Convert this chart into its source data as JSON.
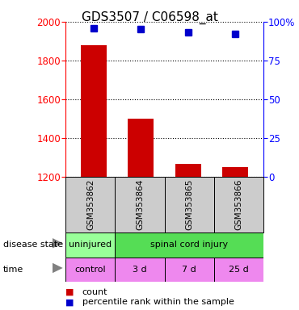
{
  "title": "GDS3507 / C06598_at",
  "samples": [
    "GSM353862",
    "GSM353864",
    "GSM353865",
    "GSM353866"
  ],
  "count_values": [
    1880,
    1500,
    1265,
    1248
  ],
  "percentile_values": [
    96,
    95,
    93,
    92
  ],
  "ylim_left": [
    1200,
    2000
  ],
  "ylim_right": [
    0,
    100
  ],
  "yticks_left": [
    1200,
    1400,
    1600,
    1800,
    2000
  ],
  "yticks_right": [
    0,
    25,
    50,
    75,
    100
  ],
  "ytick_labels_right": [
    "0",
    "25",
    "50",
    "75",
    "100%"
  ],
  "bar_color": "#cc0000",
  "dot_color": "#0000cc",
  "bar_width": 0.55,
  "time_labels": [
    "control",
    "3 d",
    "7 d",
    "25 d"
  ],
  "time_color": "#ee88ee",
  "sample_bg_color": "#cccccc",
  "legend_count_color": "#cc0000",
  "legend_pct_color": "#0000cc",
  "title_fontsize": 11,
  "tick_fontsize": 8.5,
  "label_fontsize": 8
}
